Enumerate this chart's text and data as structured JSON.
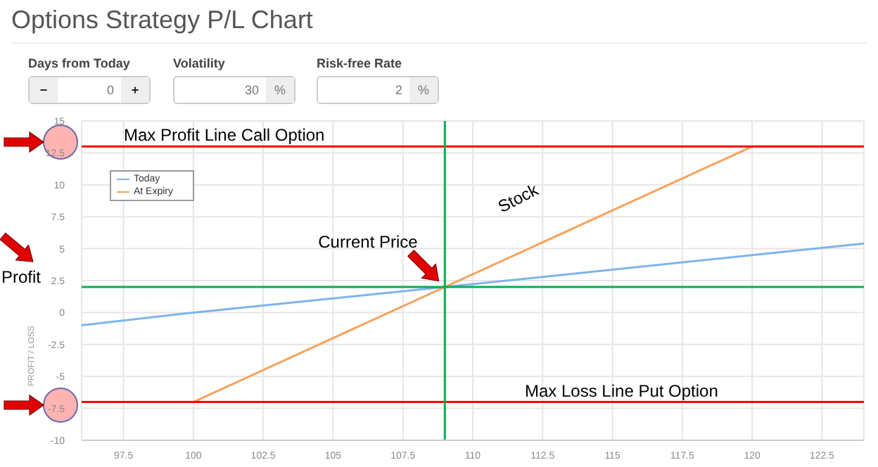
{
  "chart_data": {
    "type": "line",
    "title": "Options Strategy P/L Chart",
    "ylabel": "PROFIT / LOSS",
    "annotations": [
      "Days from Today",
      "0",
      "Volatility",
      "30",
      "%",
      "Risk-free Rate",
      "2",
      "%",
      "−",
      "+",
      "Stock"
    ],
    "series": [
      {
        "name": "Today",
        "color": "#7cb5ec",
        "x": [
          96,
          100,
          109,
          124
        ],
        "values": [
          -1,
          0,
          2,
          5.4
        ]
      },
      {
        "name": "At Expiry",
        "color": "#f7a35c",
        "x": [
          96,
          100,
          120,
          124
        ],
        "values": [
          -7,
          -7,
          13,
          13
        ]
      }
    ],
    "xlim": [
      96,
      124
    ],
    "xticks": [
      97.5,
      100,
      102.5,
      105,
      107.5,
      110,
      112.5,
      115,
      117.5,
      120,
      122.5
    ],
    "ylim": [
      -10,
      15
    ],
    "yticks": [
      -10,
      -7.5,
      -5,
      -2.5,
      0,
      2.5,
      5,
      7.5,
      10,
      12.5,
      15
    ],
    "ref_lines": [
      {
        "axis": "y",
        "value": 13,
        "label": "Max Profit Line Call Option",
        "color": "#ff0000"
      },
      {
        "axis": "y",
        "value": -7,
        "label": "Max Loss Line Put Option",
        "color": "#ff0000"
      },
      {
        "axis": "x",
        "value": 109,
        "label": "Current Price",
        "color": "#00b050"
      },
      {
        "axis": "y",
        "value": 2,
        "label": "Profit",
        "color": "#00b050"
      }
    ],
    "grid": true,
    "legend": "top left",
    "marker": "none",
    "line_style": "solid"
  }
}
